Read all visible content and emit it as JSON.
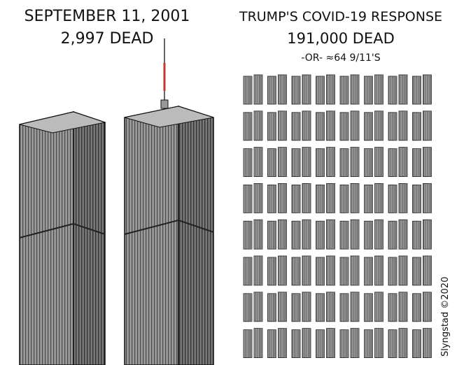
{
  "left": {
    "title": "SEPTEMBER 11, 2001",
    "subtitle": "2,997 DEAD"
  },
  "right": {
    "title": "TRUMP'S COVID-19 RESPONSE",
    "subtitle": "191,000 DEAD",
    "note": "-OR- ≈64 9/11'S"
  },
  "signature": "Slyngstad ©2020"
}
